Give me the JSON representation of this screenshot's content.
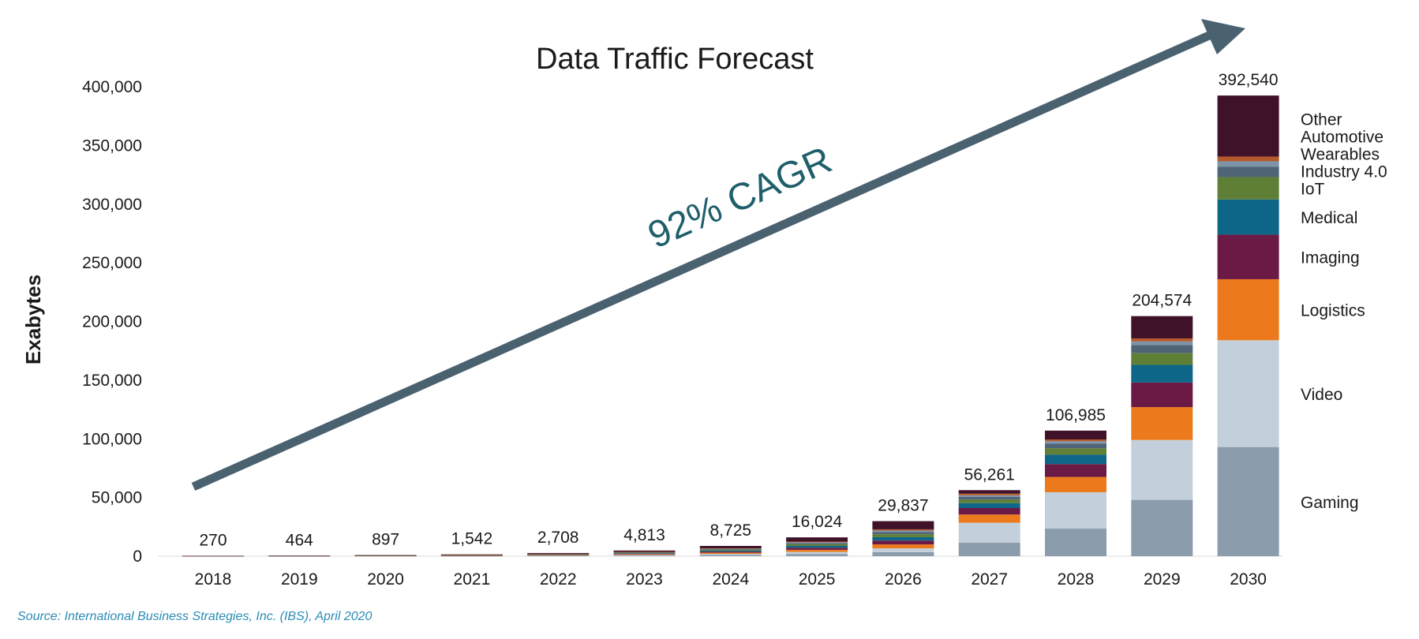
{
  "chart_data": {
    "type": "bar",
    "stacked": true,
    "title": "Data Traffic Forecast",
    "ylabel": "Exabytes",
    "xlabel": "",
    "ylim": [
      0,
      400000
    ],
    "y_ticks": [
      "400,000",
      "350,000",
      "300,000",
      "250,000",
      "200,000",
      "150,000",
      "100,000",
      "50,000",
      "0"
    ],
    "y_tick_values": [
      400000,
      350000,
      300000,
      250000,
      200000,
      150000,
      100000,
      50000,
      0
    ],
    "categories": [
      "2018",
      "2019",
      "2020",
      "2021",
      "2022",
      "2023",
      "2024",
      "2025",
      "2026",
      "2027",
      "2028",
      "2029",
      "2030"
    ],
    "totals": [
      270,
      464,
      897,
      1542,
      2708,
      4813,
      8725,
      16024,
      29837,
      56261,
      106985,
      204574,
      392540
    ],
    "total_labels": [
      "270",
      "464",
      "897",
      "1,542",
      "2,708",
      "4,813",
      "8,725",
      "16,024",
      "29,837",
      "56,261",
      "106,985",
      "204,574",
      "392,540"
    ],
    "series": [
      {
        "name": "Gaming",
        "color": "#8b9cac",
        "values": [
          35,
          60,
          115,
          190,
          330,
          580,
          1050,
          1900,
          3500,
          11500,
          23500,
          48000,
          93000
        ]
      },
      {
        "name": "Video",
        "color": "#c3d0db",
        "values": [
          30,
          50,
          100,
          170,
          300,
          530,
          950,
          1750,
          3200,
          17000,
          31000,
          51000,
          91000
        ]
      },
      {
        "name": "Logistics",
        "color": "#ec7a1c",
        "values": [
          30,
          50,
          100,
          170,
          300,
          530,
          970,
          1800,
          3300,
          7000,
          13000,
          28000,
          52000
        ]
      },
      {
        "name": "Imaging",
        "color": "#6b1a45",
        "values": [
          30,
          50,
          100,
          170,
          300,
          530,
          960,
          1780,
          3300,
          5500,
          11000,
          21000,
          38000
        ]
      },
      {
        "name": "Medical",
        "color": "#0d6688",
        "values": [
          25,
          45,
          85,
          150,
          260,
          460,
          840,
          1550,
          2900,
          4200,
          8000,
          15000,
          30000
        ]
      },
      {
        "name": "IoT",
        "color": "#5e7f35",
        "values": [
          20,
          40,
          75,
          130,
          230,
          410,
          740,
          1350,
          2500,
          3000,
          5500,
          10000,
          19000
        ]
      },
      {
        "name": "Industry 4.0",
        "color": "#4f6577",
        "values": [
          15,
          30,
          60,
          100,
          175,
          310,
          560,
          1030,
          1900,
          2400,
          4000,
          7000,
          9000
        ]
      },
      {
        "name": "Wearables",
        "color": "#7d93a8",
        "values": [
          10,
          20,
          40,
          70,
          120,
          215,
          390,
          720,
          1300,
          1300,
          2000,
          3000,
          4500
        ]
      },
      {
        "name": "Automotive",
        "color": "#b45a2a",
        "values": [
          10,
          15,
          30,
          50,
          90,
          160,
          290,
          530,
          1000,
          1361,
          1485,
          2574,
          4040
        ]
      },
      {
        "name": "Other",
        "color": "#3f1229",
        "values": [
          65,
          104,
          192,
          342,
          603,
          1088,
          1975,
          3614,
          6937,
          3000,
          7500,
          19000,
          52000
        ]
      }
    ],
    "annotation": "92% CAGR",
    "legend": "right of last bar",
    "grid": false
  },
  "source": "Source:  International Business Strategies, Inc. (IBS), April 2020"
}
